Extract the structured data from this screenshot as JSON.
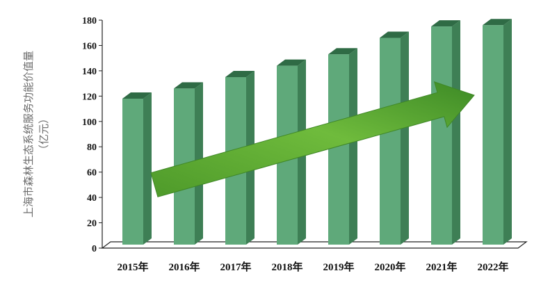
{
  "chart_data": {
    "type": "bar",
    "categories": [
      "2015年",
      "2016年",
      "2017年",
      "2018年",
      "2019年",
      "2020年",
      "2021年",
      "2022年"
    ],
    "values": [
      118,
      126,
      135,
      144,
      153,
      166,
      175,
      176
    ],
    "ylabel": [
      "上海市森林生态系统服务功能价值量",
      "（亿元）"
    ],
    "ylim": [
      0,
      180
    ],
    "yticks": [
      0,
      20,
      40,
      60,
      80,
      100,
      120,
      140,
      160,
      180
    ],
    "grid": false,
    "legend": "none",
    "style": "3d-column",
    "annotation": "rising-trend-arrow",
    "colors": {
      "bar_front": "#5fa97a",
      "bar_side": "#3e7f55",
      "bar_top": "#2f6b45",
      "arrow": "#6fb83a",
      "axis": "#222222"
    }
  }
}
